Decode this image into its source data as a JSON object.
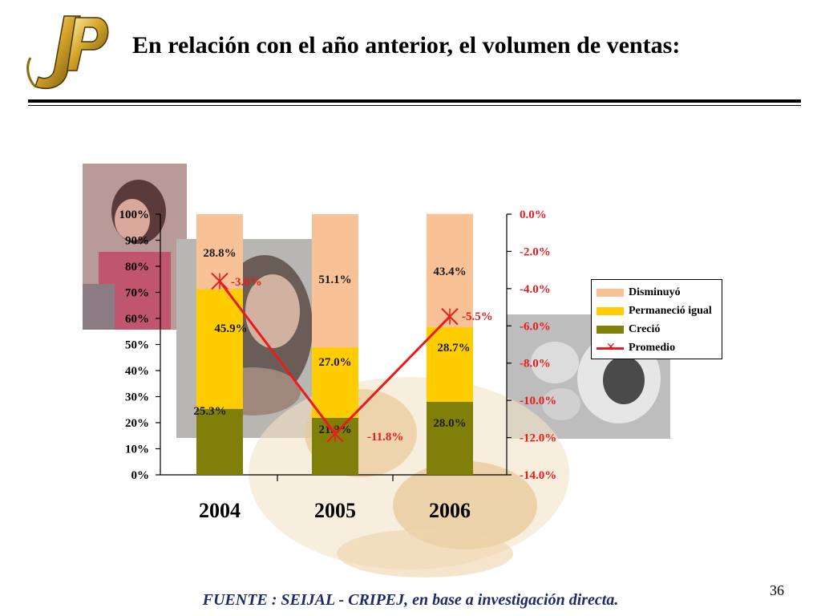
{
  "header": {
    "title": "En relación con el año anterior, el volumen de ventas:"
  },
  "footer": {
    "source": "FUENTE : SEIJAL - CRIPEJ, en base a investigación directa.",
    "page_number": "36"
  },
  "colors": {
    "disminuyo": "#f9c196",
    "permanecio": "#ffcc00",
    "crecio": "#7f7f0a",
    "promedio": "#e81c1c",
    "logo_gold": "#c9a227"
  },
  "chart_data": {
    "type": "bar",
    "stacked": true,
    "categories": [
      "2004",
      "2005",
      "2006"
    ],
    "series": [
      {
        "name": "Creció",
        "values": [
          25.3,
          21.9,
          28.0
        ],
        "labels": [
          "25.3%",
          "21.9%",
          "28.0%"
        ]
      },
      {
        "name": "Permaneció igual",
        "values": [
          45.9,
          27.0,
          28.7
        ],
        "labels": [
          "45.9%",
          "27.0%",
          "28.7%"
        ]
      },
      {
        "name": "Disminuyó",
        "values": [
          28.8,
          51.1,
          43.4
        ],
        "labels": [
          "28.8%",
          "51.1%",
          "43.4%"
        ]
      }
    ],
    "line_series": {
      "name": "Promedio",
      "axis": "right",
      "values": [
        -3.6,
        -11.8,
        -5.5
      ],
      "labels": [
        "-3.6%",
        "-11.8%",
        "-5.5%"
      ]
    },
    "legend": {
      "position": "right",
      "entries": [
        "Disminuyó",
        "Permaneció igual",
        "Creció",
        "Promedio"
      ]
    },
    "left_axis": {
      "ylim": [
        0,
        100
      ],
      "ticks": [
        0,
        10,
        20,
        30,
        40,
        50,
        60,
        70,
        80,
        90,
        100
      ],
      "tick_labels": [
        "0%",
        "10%",
        "20%",
        "30%",
        "40%",
        "50%",
        "60%",
        "70%",
        "80%",
        "90%",
        "100%"
      ]
    },
    "right_axis": {
      "ylim": [
        -14,
        0
      ],
      "ticks": [
        0,
        -2,
        -4,
        -6,
        -8,
        -10,
        -12,
        -14
      ],
      "tick_labels": [
        "0.0%",
        "-2.0%",
        "-4.0%",
        "-6.0%",
        "-8.0%",
        "-10.0%",
        "-12.0%",
        "-14.0%"
      ]
    },
    "grid": false
  }
}
